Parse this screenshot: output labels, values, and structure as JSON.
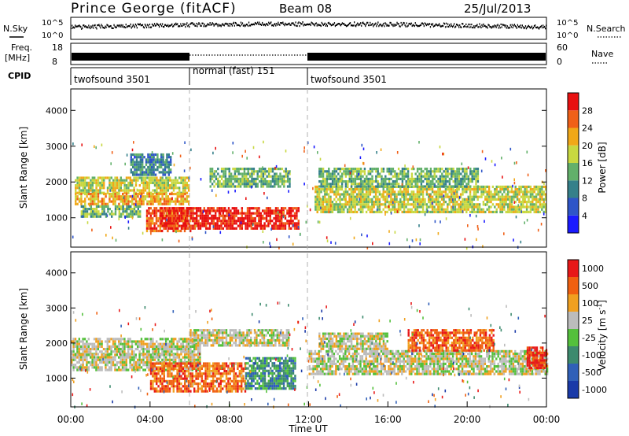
{
  "header": {
    "station": "Prince George (fitACF)",
    "beam": "Beam 08",
    "date": "25/Jul/2013"
  },
  "chart_data": [
    {
      "type": "line",
      "panel": "noise",
      "left_label": "N.Sky",
      "right_label": "N.Search",
      "left_ticks": [
        "10^5",
        "10^0"
      ],
      "right_ticks": [
        "10^5",
        "10^0"
      ]
    },
    {
      "type": "line",
      "panel": "frequency",
      "left_label_lines": [
        "Freq.",
        "[MHz]"
      ],
      "right_label": "Nave",
      "left_ticks": [
        "18",
        "8"
      ],
      "right_ticks": [
        "60",
        "0"
      ]
    },
    {
      "type": "table",
      "panel": "cpid",
      "label": "CPID",
      "segments": [
        {
          "name": "twofsound 3501",
          "start_hour": 0,
          "end_hour": 6
        },
        {
          "name": "normal (fast) 151",
          "start_hour": 6,
          "end_hour": 12
        },
        {
          "name": "twofsound 3501",
          "start_hour": 12,
          "end_hour": 24
        }
      ]
    },
    {
      "type": "heatmap",
      "panel": "power",
      "ylabel": "Slant Range [km]",
      "ylim": [
        180,
        4600
      ],
      "yticks": [
        "1000",
        "2000",
        "3000",
        "4000"
      ],
      "xlim": [
        0,
        24
      ],
      "colorbar_label": "Power [dB]",
      "colorbar_ticks": [
        "4",
        "8",
        "12",
        "16",
        "20",
        "24",
        "28"
      ],
      "colors": [
        "#1a1aff",
        "#2e55c8",
        "#35808a",
        "#62b06a",
        "#c8d840",
        "#f0a818",
        "#f06018",
        "#e81010"
      ],
      "regions": [
        {
          "t0": 0.2,
          "t1": 6.0,
          "r0": 1700,
          "r1": 2150,
          "level": 4
        },
        {
          "t0": 0.2,
          "t1": 6.0,
          "r0": 1350,
          "r1": 1700,
          "level": 5
        },
        {
          "t0": 0.5,
          "t1": 3.5,
          "r0": 1050,
          "r1": 1350,
          "level": 3
        },
        {
          "t0": 3.8,
          "t1": 6.0,
          "r0": 600,
          "r1": 1300,
          "level": 6
        },
        {
          "t0": 4.5,
          "t1": 11.5,
          "r0": 700,
          "r1": 1300,
          "level": 7
        },
        {
          "t0": 7.0,
          "t1": 11.0,
          "r0": 1900,
          "r1": 2400,
          "level": 3
        },
        {
          "t0": 12.3,
          "t1": 24.0,
          "r0": 1150,
          "r1": 1900,
          "level": 4
        },
        {
          "t0": 12.5,
          "t1": 20.5,
          "r0": 1900,
          "r1": 2400,
          "level": 3
        },
        {
          "t0": 3.0,
          "t1": 5.0,
          "r0": 2200,
          "r1": 2800,
          "level": 2
        }
      ]
    },
    {
      "type": "heatmap",
      "panel": "velocity",
      "ylabel": "Slant Range [km]",
      "ylim": [
        180,
        4600
      ],
      "yticks": [
        "1000",
        "2000",
        "3000",
        "4000"
      ],
      "xlim": [
        0,
        24
      ],
      "xticks": [
        "00:00",
        "04:00",
        "08:00",
        "12:00",
        "16:00",
        "20:00",
        "00:00"
      ],
      "xlabel": "Time UT",
      "colorbar_label": "Velocity [m s",
      "colorbar_label_sup": "-1",
      "colorbar_ticks": [
        "1000",
        "500",
        "100",
        "25",
        "-25",
        "-100",
        "-500",
        "-1000"
      ],
      "colors": [
        "#1a3aa8",
        "#3060b8",
        "#3d8a6e",
        "#54c03c",
        "#bcbcbc",
        "#f0a020",
        "#f06010",
        "#e81818"
      ],
      "regions": [
        {
          "t0": 0.0,
          "t1": 6.5,
          "r0": 1700,
          "r1": 2150,
          "level": 4
        },
        {
          "t0": 0.0,
          "t1": 6.5,
          "r0": 1250,
          "r1": 1700,
          "level": 4
        },
        {
          "t0": 4.0,
          "t1": 8.8,
          "r0": 650,
          "r1": 1450,
          "level": 6
        },
        {
          "t0": 8.8,
          "t1": 11.3,
          "r0": 700,
          "r1": 1600,
          "level": 2
        },
        {
          "t0": 12.0,
          "t1": 24.0,
          "r0": 1100,
          "r1": 1800,
          "level": 4
        },
        {
          "t0": 12.5,
          "t1": 16.0,
          "r0": 1800,
          "r1": 2300,
          "level": 4
        },
        {
          "t0": 17.0,
          "t1": 21.3,
          "r0": 1800,
          "r1": 2400,
          "level": 6
        },
        {
          "t0": 23.0,
          "t1": 24.0,
          "r0": 1300,
          "r1": 1900,
          "level": 7
        },
        {
          "t0": 6.0,
          "t1": 11.0,
          "r0": 1900,
          "r1": 2400,
          "level": 4
        }
      ]
    }
  ]
}
